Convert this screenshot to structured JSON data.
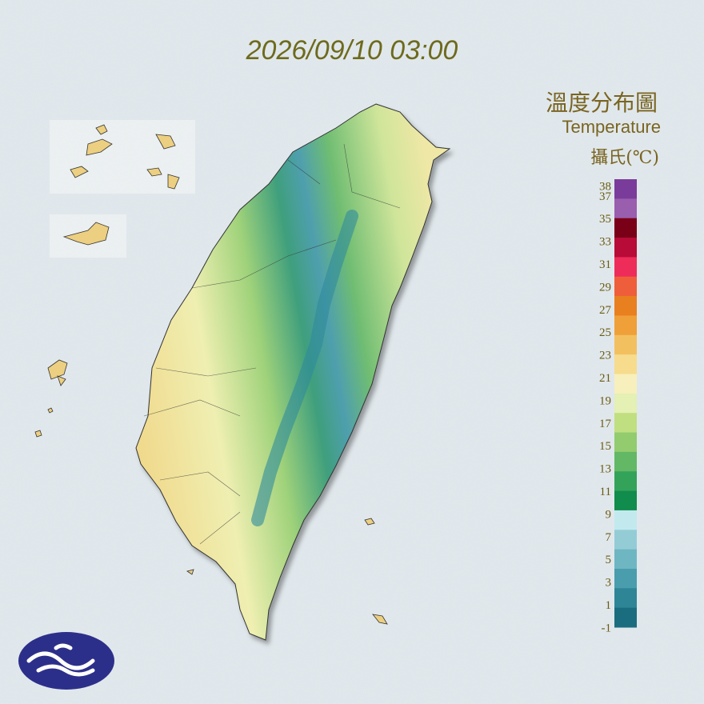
{
  "header": {
    "timestamp": "2026/09/10 03:00"
  },
  "legend": {
    "title": "溫度分布圖",
    "subtitle": "Temperature",
    "unit": "攝氏(℃)",
    "labels": [
      38,
      37,
      35,
      33,
      31,
      29,
      27,
      25,
      23,
      21,
      19,
      17,
      15,
      13,
      11,
      9,
      7,
      5,
      3,
      1,
      -1
    ]
  }
}
